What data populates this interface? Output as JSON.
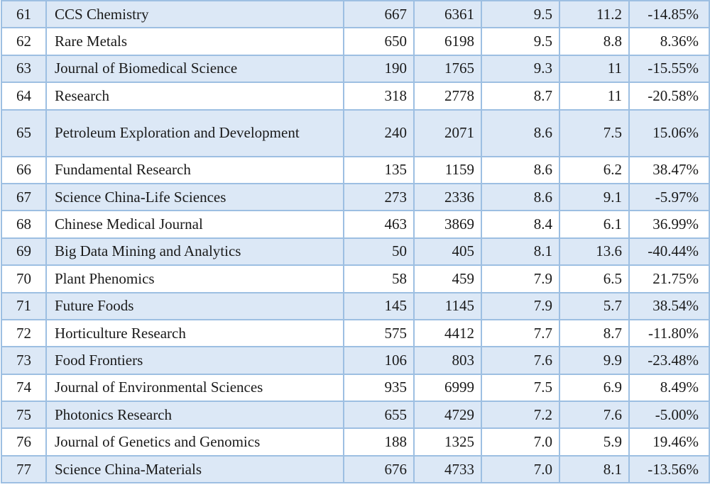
{
  "rows": [
    {
      "rank": "61",
      "journal": "CCS Chemistry",
      "col3": "667",
      "col4": "6361",
      "col5": "9.5",
      "col6": "11.2",
      "col7": "-14.85%"
    },
    {
      "rank": "62",
      "journal": "Rare Metals",
      "col3": "650",
      "col4": "6198",
      "col5": "9.5",
      "col6": "8.8",
      "col7": "8.36%"
    },
    {
      "rank": "63",
      "journal": "Journal of Biomedical Science",
      "col3": "190",
      "col4": "1765",
      "col5": "9.3",
      "col6": "11",
      "col7": "-15.55%"
    },
    {
      "rank": "64",
      "journal": "Research",
      "col3": "318",
      "col4": "2778",
      "col5": "8.7",
      "col6": "11",
      "col7": "-20.58%"
    },
    {
      "rank": "65",
      "journal": "Petroleum Exploration and Development",
      "col3": "240",
      "col4": "2071",
      "col5": "8.6",
      "col6": "7.5",
      "col7": "15.06%"
    },
    {
      "rank": "66",
      "journal": "Fundamental Research",
      "col3": "135",
      "col4": "1159",
      "col5": "8.6",
      "col6": "6.2",
      "col7": "38.47%"
    },
    {
      "rank": "67",
      "journal": "Science China-Life Sciences",
      "col3": "273",
      "col4": "2336",
      "col5": "8.6",
      "col6": "9.1",
      "col7": "-5.97%"
    },
    {
      "rank": "68",
      "journal": "Chinese Medical Journal",
      "col3": "463",
      "col4": "3869",
      "col5": "8.4",
      "col6": "6.1",
      "col7": "36.99%"
    },
    {
      "rank": "69",
      "journal": "Big Data Mining and Analytics",
      "col3": "50",
      "col4": "405",
      "col5": "8.1",
      "col6": "13.6",
      "col7": "-40.44%"
    },
    {
      "rank": "70",
      "journal": "Plant Phenomics",
      "col3": "58",
      "col4": "459",
      "col5": "7.9",
      "col6": "6.5",
      "col7": "21.75%"
    },
    {
      "rank": "71",
      "journal": "Future Foods",
      "col3": "145",
      "col4": "1145",
      "col5": "7.9",
      "col6": "5.7",
      "col7": "38.54%"
    },
    {
      "rank": "72",
      "journal": "Horticulture Research",
      "col3": "575",
      "col4": "4412",
      "col5": "7.7",
      "col6": "8.7",
      "col7": "-11.80%"
    },
    {
      "rank": "73",
      "journal": "Food Frontiers",
      "col3": "106",
      "col4": "803",
      "col5": "7.6",
      "col6": "9.9",
      "col7": "-23.48%"
    },
    {
      "rank": "74",
      "journal": "Journal of Environmental Sciences",
      "col3": "935",
      "col4": "6999",
      "col5": "7.5",
      "col6": "6.9",
      "col7": "8.49%"
    },
    {
      "rank": "75",
      "journal": "Photonics Research",
      "col3": "655",
      "col4": "4729",
      "col5": "7.2",
      "col6": "7.6",
      "col7": "-5.00%"
    },
    {
      "rank": "76",
      "journal": "Journal of Genetics and Genomics",
      "col3": "188",
      "col4": "1325",
      "col5": "7.0",
      "col6": "5.9",
      "col7": "19.46%"
    },
    {
      "rank": "77",
      "journal": "Science China-Materials",
      "col3": "676",
      "col4": "4733",
      "col5": "7.0",
      "col6": "8.1",
      "col7": "-13.56%"
    }
  ]
}
